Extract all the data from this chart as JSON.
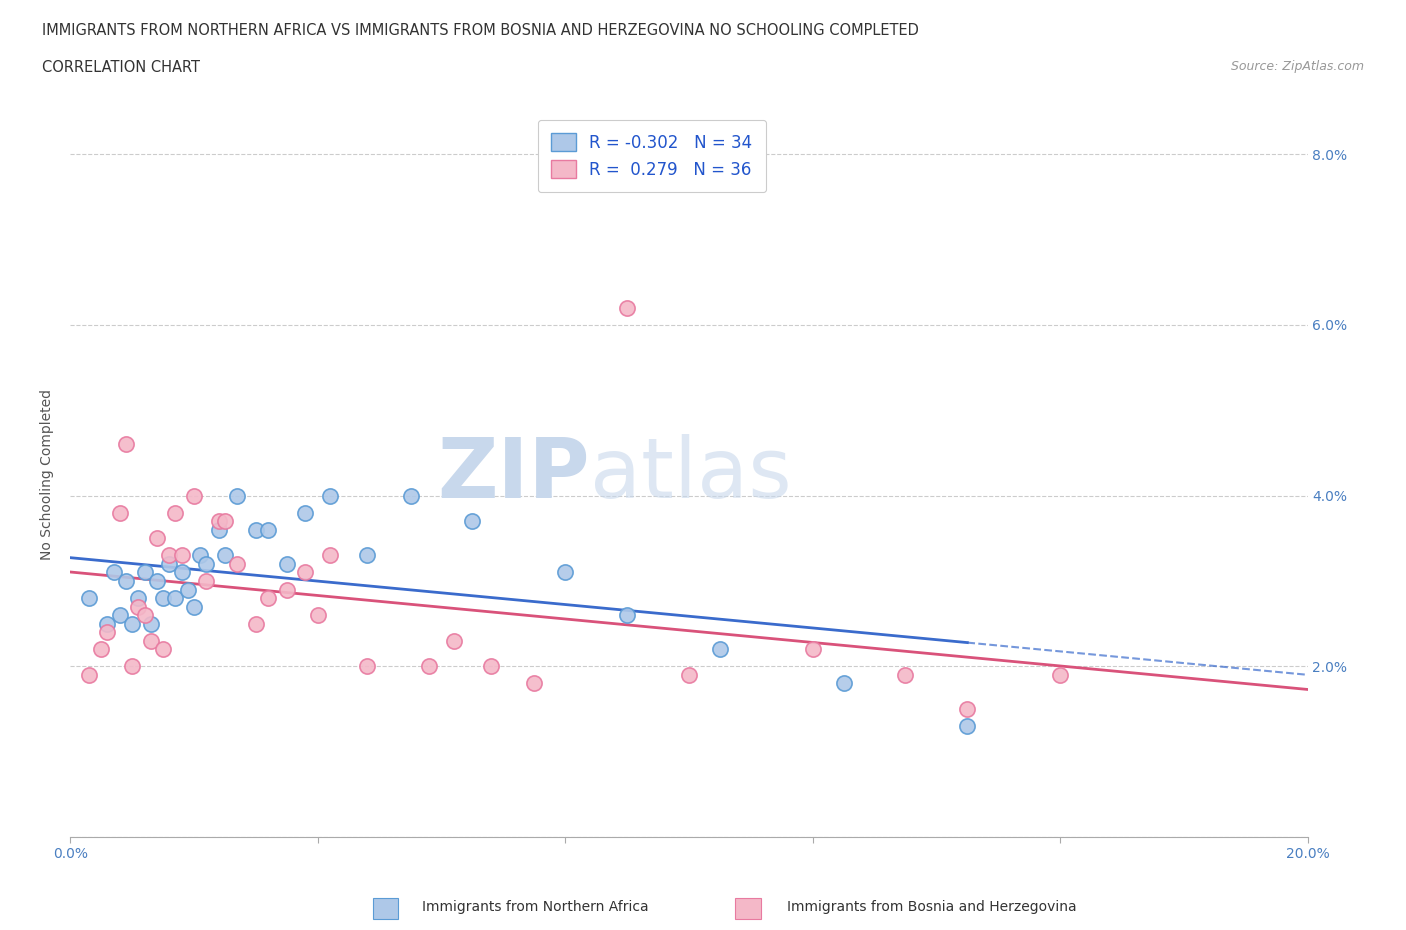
{
  "title_line1": "IMMIGRANTS FROM NORTHERN AFRICA VS IMMIGRANTS FROM BOSNIA AND HERZEGOVINA NO SCHOOLING COMPLETED",
  "title_line2": "CORRELATION CHART",
  "source_text": "Source: ZipAtlas.com",
  "ylabel": "No Schooling Completed",
  "xlim": [
    0.0,
    0.2
  ],
  "ylim": [
    0.0,
    0.085
  ],
  "xticks": [
    0.0,
    0.04,
    0.08,
    0.12,
    0.16,
    0.2
  ],
  "xticklabels": [
    "0.0%",
    "",
    "",
    "",
    "",
    "20.0%"
  ],
  "yticks": [
    0.0,
    0.02,
    0.04,
    0.06,
    0.08
  ],
  "yticklabels": [
    "",
    "2.0%",
    "4.0%",
    "6.0%",
    "8.0%"
  ],
  "color_blue": "#aec8e8",
  "color_pink": "#f4b8c8",
  "edge_color_blue": "#5b9bd5",
  "edge_color_pink": "#e87aa0",
  "line_color_blue": "#3a6bcc",
  "line_color_pink": "#d9527a",
  "watermark_zip": "ZIP",
  "watermark_atlas": "atlas",
  "R_blue": -0.302,
  "N_blue": 34,
  "R_pink": 0.279,
  "N_pink": 36,
  "legend_label_blue": "Immigrants from Northern Africa",
  "legend_label_pink": "Immigrants from Bosnia and Herzegovina",
  "blue_x": [
    0.003,
    0.006,
    0.007,
    0.008,
    0.009,
    0.01,
    0.011,
    0.012,
    0.013,
    0.014,
    0.015,
    0.016,
    0.017,
    0.018,
    0.019,
    0.02,
    0.021,
    0.022,
    0.024,
    0.025,
    0.027,
    0.03,
    0.032,
    0.035,
    0.038,
    0.042,
    0.048,
    0.055,
    0.065,
    0.08,
    0.09,
    0.105,
    0.125,
    0.145
  ],
  "blue_y": [
    0.028,
    0.025,
    0.031,
    0.026,
    0.03,
    0.025,
    0.028,
    0.031,
    0.025,
    0.03,
    0.028,
    0.032,
    0.028,
    0.031,
    0.029,
    0.027,
    0.033,
    0.032,
    0.036,
    0.033,
    0.04,
    0.036,
    0.036,
    0.032,
    0.038,
    0.04,
    0.033,
    0.04,
    0.037,
    0.031,
    0.026,
    0.022,
    0.018,
    0.013
  ],
  "pink_x": [
    0.003,
    0.005,
    0.006,
    0.008,
    0.009,
    0.01,
    0.011,
    0.012,
    0.013,
    0.014,
    0.015,
    0.016,
    0.017,
    0.018,
    0.02,
    0.022,
    0.024,
    0.025,
    0.027,
    0.03,
    0.032,
    0.035,
    0.038,
    0.04,
    0.042,
    0.048,
    0.058,
    0.062,
    0.068,
    0.075,
    0.09,
    0.1,
    0.12,
    0.135,
    0.145,
    0.16
  ],
  "pink_y": [
    0.019,
    0.022,
    0.024,
    0.038,
    0.046,
    0.02,
    0.027,
    0.026,
    0.023,
    0.035,
    0.022,
    0.033,
    0.038,
    0.033,
    0.04,
    0.03,
    0.037,
    0.037,
    0.032,
    0.025,
    0.028,
    0.029,
    0.031,
    0.026,
    0.033,
    0.02,
    0.02,
    0.023,
    0.02,
    0.018,
    0.062,
    0.019,
    0.022,
    0.019,
    0.015,
    0.019
  ],
  "grid_color": "#cccccc",
  "background_color": "#ffffff",
  "dot_size": 120
}
